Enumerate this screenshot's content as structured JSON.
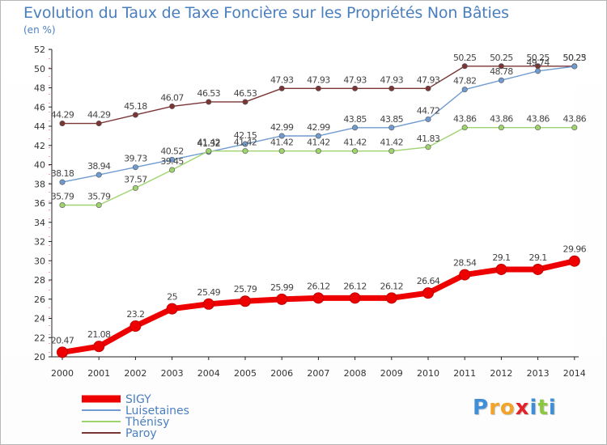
{
  "title": "Evolution du Taux de Taxe Foncière sur les Propriétés Non Bâties",
  "unit": "(en %)",
  "logo": {
    "letters": [
      "P",
      "r",
      "o",
      "x",
      "i",
      "t",
      "i"
    ],
    "colors": [
      "#3e8fd8",
      "#f2a42a",
      "#f2a42a",
      "#e2242a",
      "#3e8fd8",
      "#8dc63f",
      "#3e8fd8"
    ]
  },
  "chart_data": {
    "type": "line",
    "title": "Evolution du Taux de Taxe Foncière sur les Propriétés Non Bâties",
    "ylabel": "(en %)",
    "xlabel": "",
    "x": [
      "2000",
      "2001",
      "2002",
      "2003",
      "2004",
      "2005",
      "2006",
      "2007",
      "2008",
      "2009",
      "2010",
      "2011",
      "2012",
      "2013",
      "2014"
    ],
    "ylim": [
      20,
      52
    ],
    "yticks": [
      20,
      22,
      24,
      26,
      28,
      30,
      32,
      34,
      36,
      38,
      40,
      42,
      44,
      46,
      48,
      50,
      52
    ],
    "grid": false,
    "legend": "bottom-left",
    "series": [
      {
        "name": "SIGY",
        "color": "#ee0000",
        "values": [
          20.47,
          21.08,
          23.2,
          25,
          25.49,
          25.79,
          25.99,
          26.12,
          26.12,
          26.12,
          26.64,
          28.54,
          29.1,
          29.1,
          29.96
        ],
        "labels": [
          "20.47",
          "21.08",
          "23.2",
          "25",
          "25.49",
          "25.79",
          "25.99",
          "26.12",
          "26.12",
          "26.12",
          "26.64",
          "28.54",
          "29.1",
          "29.1",
          "29.96"
        ]
      },
      {
        "name": "Luisetaines",
        "color": "#6f9bd0",
        "values": [
          38.18,
          38.94,
          39.73,
          40.52,
          41.32,
          42.15,
          42.99,
          42.99,
          43.85,
          43.85,
          44.72,
          47.82,
          48.78,
          49.74,
          50.23
        ],
        "labels": [
          "38.18",
          "38.94",
          "39.73",
          "40.52",
          "41.32",
          "42.15",
          "42.99",
          "42.99",
          "43.85",
          "43.85",
          "44.72",
          "47.82",
          "48.78",
          "49.74",
          "50.23"
        ]
      },
      {
        "name": "Thénisy",
        "color": "#9ed36e",
        "values": [
          35.79,
          35.79,
          37.57,
          39.45,
          41.42,
          41.42,
          41.42,
          41.42,
          41.42,
          41.42,
          41.83,
          43.86,
          43.86,
          43.86,
          43.86
        ],
        "labels": [
          "35.79",
          "35.79",
          "37.57",
          "39.45",
          "41.42",
          "41.42",
          "41.42",
          "41.42",
          "41.42",
          "41.42",
          "41.83",
          "43.86",
          "43.86",
          "43.86",
          "43.86"
        ]
      },
      {
        "name": "Paroy",
        "color": "#7a3535",
        "values": [
          44.29,
          44.29,
          45.18,
          46.07,
          46.53,
          46.53,
          47.93,
          47.93,
          47.93,
          47.93,
          47.93,
          50.25,
          50.25,
          50.25,
          50.25
        ],
        "labels": [
          "44.29",
          "44.29",
          "45.18",
          "46.07",
          "46.53",
          "46.53",
          "47.93",
          "47.93",
          "47.93",
          "47.93",
          "47.93",
          "50.25",
          "50.25",
          "50.25",
          "50.25"
        ]
      }
    ]
  }
}
